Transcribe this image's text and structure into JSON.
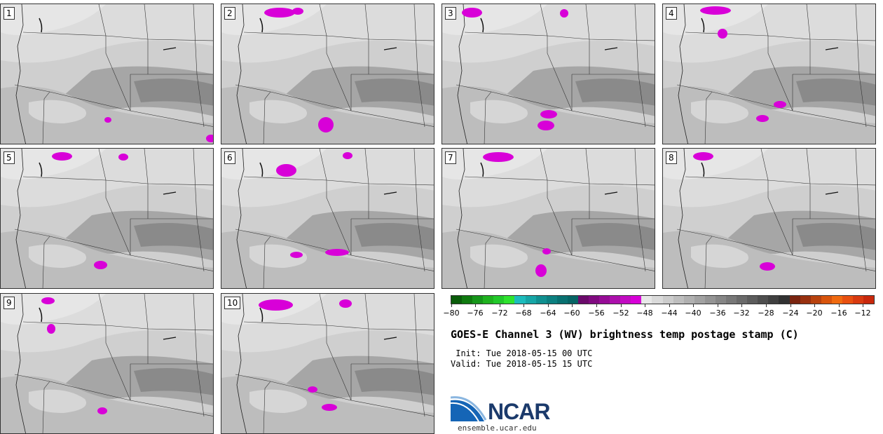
{
  "panels": [
    {
      "label": "1"
    },
    {
      "label": "2"
    },
    {
      "label": "3"
    },
    {
      "label": "4"
    },
    {
      "label": "5"
    },
    {
      "label": "6"
    },
    {
      "label": "7"
    },
    {
      "label": "8"
    },
    {
      "label": "9"
    },
    {
      "label": "10"
    }
  ],
  "colorbar": {
    "colors": [
      "#0a5c0a",
      "#0f7a0f",
      "#16961a",
      "#1fb21f",
      "#22c92a",
      "#2ee32e",
      "#1cbcbc",
      "#16a6a6",
      "#109090",
      "#0c8080",
      "#087070",
      "#066464",
      "#6a0a6a",
      "#800a80",
      "#960c96",
      "#ac10ac",
      "#c20cc2",
      "#d800d8",
      "#e8e8e8",
      "#dadada",
      "#cccccc",
      "#bebebe",
      "#b0b0b0",
      "#a2a2a2",
      "#949494",
      "#868686",
      "#787878",
      "#6a6a6a",
      "#5c5c5c",
      "#4e4e4e",
      "#404040",
      "#323232",
      "#7a2410",
      "#98300f",
      "#b8420e",
      "#d8540c",
      "#f06a10",
      "#e85010",
      "#d83a10",
      "#c8280c"
    ],
    "tick_labels": [
      "−80",
      "−76",
      "−72",
      "−68",
      "−64",
      "−60",
      "−56",
      "−52",
      "−48",
      "−44",
      "−40",
      "−36",
      "−32",
      "−28",
      "−24",
      "−20",
      "−16",
      "−12"
    ]
  },
  "title": "GOES-E Channel 3 (WV) brightness temp postage stamp (C)",
  "init": " Init: Tue 2018-05-15 00 UTC",
  "valid": "Valid: Tue 2018-05-15 15 UTC",
  "logo": {
    "text": "NCAR",
    "url": "ensemble.ucar.edu"
  }
}
